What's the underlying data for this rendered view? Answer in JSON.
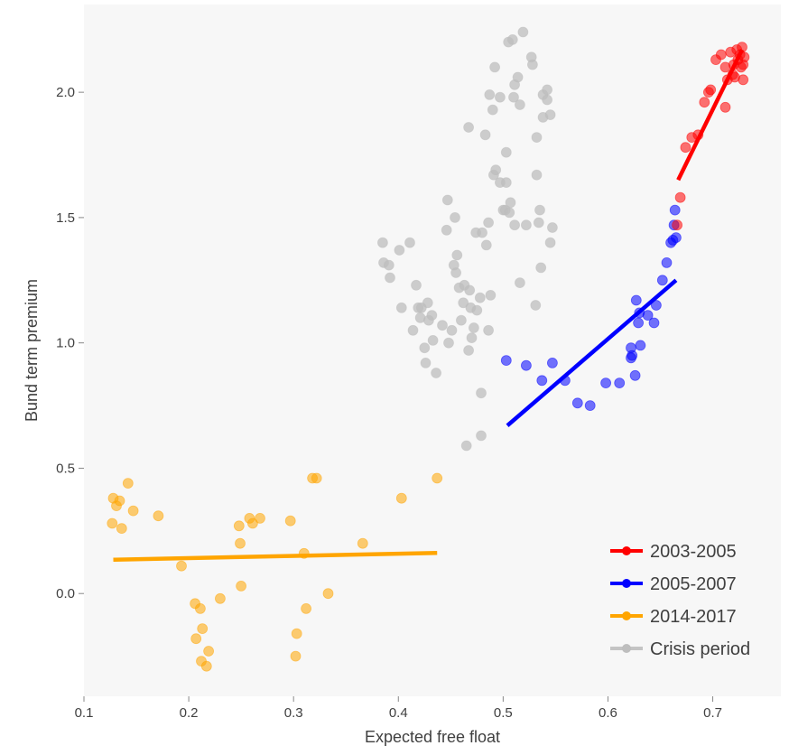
{
  "chart_data": {
    "type": "scatter",
    "title": "",
    "xlabel": "Expected free float",
    "ylabel": "Bund term premium",
    "xlim": [
      0.1,
      0.765
    ],
    "ylim": [
      -0.41,
      2.35
    ],
    "x_ticks": [
      "0.1",
      "0.2",
      "0.3",
      "0.4",
      "0.5",
      "0.6",
      "0.7"
    ],
    "y_ticks": [
      "0.0",
      "0.5",
      "1.0",
      "1.5",
      "2.0"
    ],
    "grid": false,
    "legend_position": "bottom-right",
    "legend": [
      {
        "label": "2003-2005",
        "color": "#ff0000"
      },
      {
        "label": "2005-2007",
        "color": "#0000ff"
      },
      {
        "label": "2014-2017",
        "color": "#ffa500"
      },
      {
        "label": "Crisis period",
        "color": "#bebebe"
      }
    ],
    "series": [
      {
        "name": "2003-2005",
        "color": "#ff0000",
        "fit_line": {
          "x": [
            0.667,
            0.728
          ],
          "y": [
            1.65,
            2.17
          ]
        },
        "points": [
          [
            0.669,
            1.58
          ],
          [
            0.666,
            1.47
          ],
          [
            0.674,
            1.78
          ],
          [
            0.68,
            1.82
          ],
          [
            0.686,
            1.83
          ],
          [
            0.692,
            1.96
          ],
          [
            0.696,
            2.0
          ],
          [
            0.698,
            2.01
          ],
          [
            0.703,
            2.13
          ],
          [
            0.708,
            2.15
          ],
          [
            0.712,
            1.94
          ],
          [
            0.712,
            2.1
          ],
          [
            0.714,
            2.05
          ],
          [
            0.717,
            2.16
          ],
          [
            0.719,
            2.07
          ],
          [
            0.72,
            2.11
          ],
          [
            0.721,
            2.06
          ],
          [
            0.723,
            2.17
          ],
          [
            0.724,
            2.13
          ],
          [
            0.726,
            2.15
          ],
          [
            0.727,
            2.1
          ],
          [
            0.728,
            2.18
          ],
          [
            0.729,
            2.05
          ],
          [
            0.729,
            2.11
          ],
          [
            0.73,
            2.14
          ]
        ]
      },
      {
        "name": "2005-2007",
        "color": "#0000ff",
        "fit_line": {
          "x": [
            0.504,
            0.665
          ],
          "y": [
            0.67,
            1.25
          ]
        },
        "points": [
          [
            0.503,
            0.93
          ],
          [
            0.522,
            0.91
          ],
          [
            0.537,
            0.85
          ],
          [
            0.547,
            0.92
          ],
          [
            0.559,
            0.85
          ],
          [
            0.571,
            0.76
          ],
          [
            0.583,
            0.75
          ],
          [
            0.598,
            0.84
          ],
          [
            0.611,
            0.84
          ],
          [
            0.622,
            0.94
          ],
          [
            0.622,
            0.98
          ],
          [
            0.623,
            0.95
          ],
          [
            0.626,
            0.87
          ],
          [
            0.627,
            1.17
          ],
          [
            0.629,
            1.08
          ],
          [
            0.63,
            1.12
          ],
          [
            0.631,
            0.99
          ],
          [
            0.638,
            1.11
          ],
          [
            0.644,
            1.08
          ],
          [
            0.646,
            1.15
          ],
          [
            0.652,
            1.25
          ],
          [
            0.656,
            1.32
          ],
          [
            0.66,
            1.4
          ],
          [
            0.662,
            1.41
          ],
          [
            0.663,
            1.47
          ],
          [
            0.664,
            1.53
          ],
          [
            0.665,
            1.42
          ]
        ]
      },
      {
        "name": "2014-2017",
        "color": "#ffa500",
        "fit_line": {
          "x": [
            0.128,
            0.437
          ],
          "y": [
            0.135,
            0.162
          ]
        },
        "points": [
          [
            0.127,
            0.28
          ],
          [
            0.128,
            0.38
          ],
          [
            0.131,
            0.35
          ],
          [
            0.134,
            0.37
          ],
          [
            0.136,
            0.26
          ],
          [
            0.142,
            0.44
          ],
          [
            0.147,
            0.33
          ],
          [
            0.171,
            0.31
          ],
          [
            0.193,
            0.11
          ],
          [
            0.206,
            -0.04
          ],
          [
            0.207,
            -0.18
          ],
          [
            0.211,
            -0.06
          ],
          [
            0.212,
            -0.27
          ],
          [
            0.213,
            -0.14
          ],
          [
            0.217,
            -0.29
          ],
          [
            0.219,
            -0.23
          ],
          [
            0.23,
            -0.02
          ],
          [
            0.248,
            0.27
          ],
          [
            0.249,
            0.2
          ],
          [
            0.25,
            0.03
          ],
          [
            0.258,
            0.3
          ],
          [
            0.261,
            0.28
          ],
          [
            0.268,
            0.3
          ],
          [
            0.297,
            0.29
          ],
          [
            0.302,
            -0.25
          ],
          [
            0.303,
            -0.16
          ],
          [
            0.31,
            0.16
          ],
          [
            0.312,
            -0.06
          ],
          [
            0.318,
            0.46
          ],
          [
            0.322,
            0.46
          ],
          [
            0.333,
            0.0
          ],
          [
            0.366,
            0.2
          ],
          [
            0.403,
            0.38
          ],
          [
            0.437,
            0.46
          ]
        ]
      },
      {
        "name": "Crisis period",
        "color": "#bebebe",
        "points": [
          [
            0.385,
            1.4
          ],
          [
            0.386,
            1.32
          ],
          [
            0.391,
            1.31
          ],
          [
            0.392,
            1.26
          ],
          [
            0.401,
            1.37
          ],
          [
            0.403,
            1.14
          ],
          [
            0.411,
            1.4
          ],
          [
            0.414,
            1.05
          ],
          [
            0.417,
            1.23
          ],
          [
            0.419,
            1.14
          ],
          [
            0.421,
            1.1
          ],
          [
            0.422,
            1.14
          ],
          [
            0.425,
            0.98
          ],
          [
            0.426,
            0.92
          ],
          [
            0.428,
            1.16
          ],
          [
            0.429,
            1.09
          ],
          [
            0.432,
            1.11
          ],
          [
            0.433,
            1.01
          ],
          [
            0.436,
            0.88
          ],
          [
            0.442,
            1.07
          ],
          [
            0.446,
            1.45
          ],
          [
            0.447,
            1.57
          ],
          [
            0.448,
            1.0
          ],
          [
            0.451,
            1.05
          ],
          [
            0.453,
            1.31
          ],
          [
            0.454,
            1.5
          ],
          [
            0.455,
            1.28
          ],
          [
            0.456,
            1.35
          ],
          [
            0.458,
            1.22
          ],
          [
            0.46,
            1.09
          ],
          [
            0.462,
            1.16
          ],
          [
            0.463,
            1.23
          ],
          [
            0.465,
            0.59
          ],
          [
            0.467,
            1.86
          ],
          [
            0.467,
            0.97
          ],
          [
            0.468,
            1.21
          ],
          [
            0.469,
            1.14
          ],
          [
            0.47,
            1.02
          ],
          [
            0.472,
            1.06
          ],
          [
            0.474,
            1.44
          ],
          [
            0.475,
            1.13
          ],
          [
            0.478,
            1.18
          ],
          [
            0.479,
            0.63
          ],
          [
            0.479,
            0.8
          ],
          [
            0.48,
            1.44
          ],
          [
            0.483,
            1.83
          ],
          [
            0.484,
            1.39
          ],
          [
            0.486,
            1.48
          ],
          [
            0.486,
            1.05
          ],
          [
            0.487,
            1.99
          ],
          [
            0.488,
            1.19
          ],
          [
            0.49,
            1.93
          ],
          [
            0.491,
            1.67
          ],
          [
            0.492,
            2.1
          ],
          [
            0.493,
            1.69
          ],
          [
            0.497,
            1.98
          ],
          [
            0.497,
            1.64
          ],
          [
            0.5,
            1.53
          ],
          [
            0.502,
            1.53
          ],
          [
            0.503,
            1.76
          ],
          [
            0.503,
            1.64
          ],
          [
            0.505,
            2.2
          ],
          [
            0.506,
            1.52
          ],
          [
            0.507,
            1.56
          ],
          [
            0.509,
            2.21
          ],
          [
            0.51,
            1.98
          ],
          [
            0.511,
            2.03
          ],
          [
            0.511,
            1.47
          ],
          [
            0.514,
            2.06
          ],
          [
            0.516,
            1.95
          ],
          [
            0.519,
            2.24
          ],
          [
            0.527,
            2.14
          ],
          [
            0.528,
            2.11
          ],
          [
            0.532,
            1.82
          ],
          [
            0.532,
            1.67
          ],
          [
            0.534,
            1.48
          ],
          [
            0.535,
            1.53
          ],
          [
            0.536,
            1.3
          ],
          [
            0.538,
            1.99
          ],
          [
            0.538,
            1.9
          ],
          [
            0.542,
            1.97
          ],
          [
            0.542,
            2.01
          ],
          [
            0.545,
            1.91
          ],
          [
            0.545,
            1.4
          ],
          [
            0.547,
            1.46
          ],
          [
            0.531,
            1.15
          ],
          [
            0.516,
            1.24
          ],
          [
            0.522,
            1.47
          ]
        ]
      }
    ]
  }
}
